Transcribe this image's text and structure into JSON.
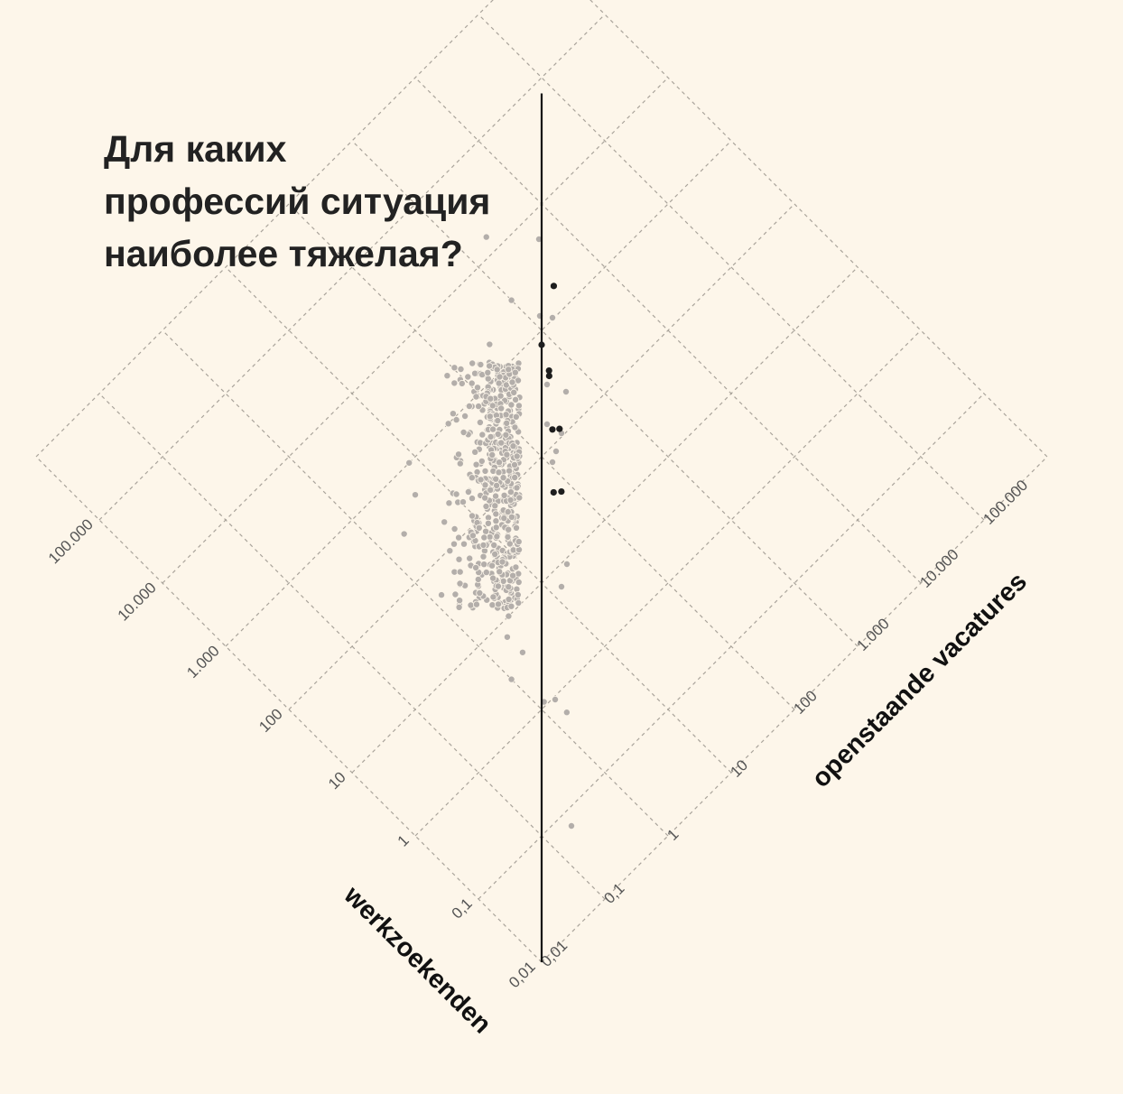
{
  "title_lines": [
    "Для каких",
    "профессий ситуация",
    "наиболее тяжелая?"
  ],
  "chart_data": {
    "type": "scatter",
    "scale": "log10",
    "orientation": "diamond (axes rotated 45°)",
    "title": "Для каких профессий ситуация наиболее тяжелая?",
    "xlabel": "werkzoekenden",
    "ylabel": "openstaande vacatures",
    "tick_labels": [
      "0,01",
      "0,1",
      "1",
      "10",
      "100",
      "1.000",
      "10.000",
      "100.000"
    ],
    "xlim": [
      0.01,
      100000
    ],
    "ylim": [
      0.01,
      100000
    ],
    "reference_line": "werkzoekenden = openstaande vacatures",
    "grid": true,
    "colors": {
      "background": "#fdf6ea",
      "points": "#b3aeaa",
      "highlight": "#1d1d1d",
      "grid": "#a9a39a"
    },
    "highlighted_points": [
      {
        "werkzoekenden": 1800,
        "openstaande_vacatures": 2800
      },
      {
        "werkzoekenden": 420,
        "openstaande_vacatures": 550
      },
      {
        "werkzoekenden": 380,
        "openstaande_vacatures": 500
      },
      {
        "werkzoekenden": 135,
        "openstaande_vacatures": 200
      },
      {
        "werkzoekenden": 120,
        "openstaande_vacatures": 230
      },
      {
        "werkzoekenden": 42,
        "openstaande_vacatures": 65
      },
      {
        "werkzoekenden": 37,
        "openstaande_vacatures": 76
      }
    ],
    "points": [
      {
        "werkzoekenden": 3000,
        "openstaande_vacatures": 1000
      },
      {
        "werkzoekenden": 2000,
        "openstaande_vacatures": 300
      },
      {
        "werkzoekenden": 15000,
        "openstaande_vacatures": 2000
      },
      {
        "werkzoekenden": 30,
        "openstaande_vacatures": 3
      },
      {
        "werkzoekenden": 10,
        "openstaande_vacatures": 3
      },
      {
        "werkzoekenden": 3,
        "openstaande_vacatures": 1
      },
      {
        "werkzoekenden": 4,
        "openstaande_vacatures": 2
      },
      {
        "werkzoekenden": 7,
        "openstaande_vacatures": 2
      },
      {
        "werkzoekenden": 1000,
        "openstaande_vacatures": 8
      },
      {
        "werkzoekenden": 300,
        "openstaande_vacatures": 2
      },
      {
        "werkzoekenden": 60,
        "openstaande_vacatures": 2.5
      },
      {
        "werkzoekenden": 50,
        "openstaande_vacatures": 1.3
      },
      {
        "werkzoekenden": 30,
        "openstaande_vacatures": 1.5
      },
      {
        "werkzoekenden": 500,
        "openstaande_vacatures": 5
      },
      {
        "werkzoekenden": 0.6,
        "openstaande_vacatures": 1.5
      },
      {
        "werkzoekenden": 1.1,
        "openstaande_vacatures": 1.2
      }
    ]
  }
}
